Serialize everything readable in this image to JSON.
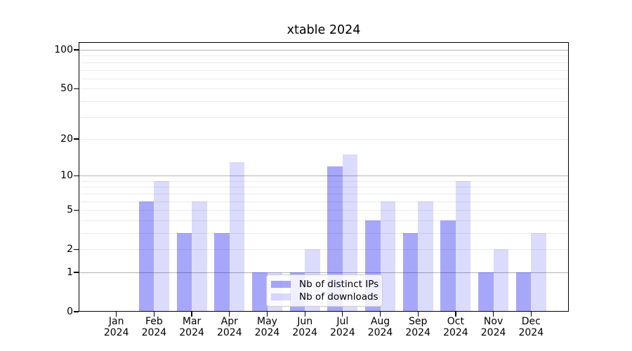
{
  "chart_data": {
    "type": "bar",
    "title": "xtable 2024",
    "categories": [
      "Jan",
      "Feb",
      "Mar",
      "Apr",
      "May",
      "Jun",
      "Jul",
      "Aug",
      "Sep",
      "Oct",
      "Nov",
      "Dec"
    ],
    "year_label": "2024",
    "series": [
      {
        "name": "Nb of distinct IPs",
        "color": "rgba(0,0,240,0.345)",
        "values": [
          0,
          6,
          3,
          3,
          1,
          1,
          12,
          4,
          3,
          4,
          1,
          1
        ]
      },
      {
        "name": "Nb of downloads",
        "color": "rgba(0,0,240,0.14)",
        "values": [
          0,
          9,
          6,
          13,
          1,
          2,
          15,
          6,
          6,
          9,
          2,
          3
        ]
      }
    ],
    "y_axis": {
      "scale": "log1p",
      "tick_values": [
        0,
        1,
        2,
        5,
        10,
        20,
        50,
        100
      ],
      "major_gridlines": [
        1,
        10,
        100
      ],
      "minor_gridlines": [
        2,
        3,
        4,
        5,
        6,
        7,
        8,
        9,
        20,
        30,
        40,
        50,
        60,
        70,
        80,
        90
      ],
      "range": [
        0,
        115
      ]
    },
    "xlabel": "",
    "ylabel": "",
    "legend_position": "lower center",
    "grid": true,
    "colors": {
      "major_grid": "#b3b3b3",
      "minor_grid": "#ebebeb",
      "axis": "#000000",
      "background": "#ffffff"
    }
  }
}
